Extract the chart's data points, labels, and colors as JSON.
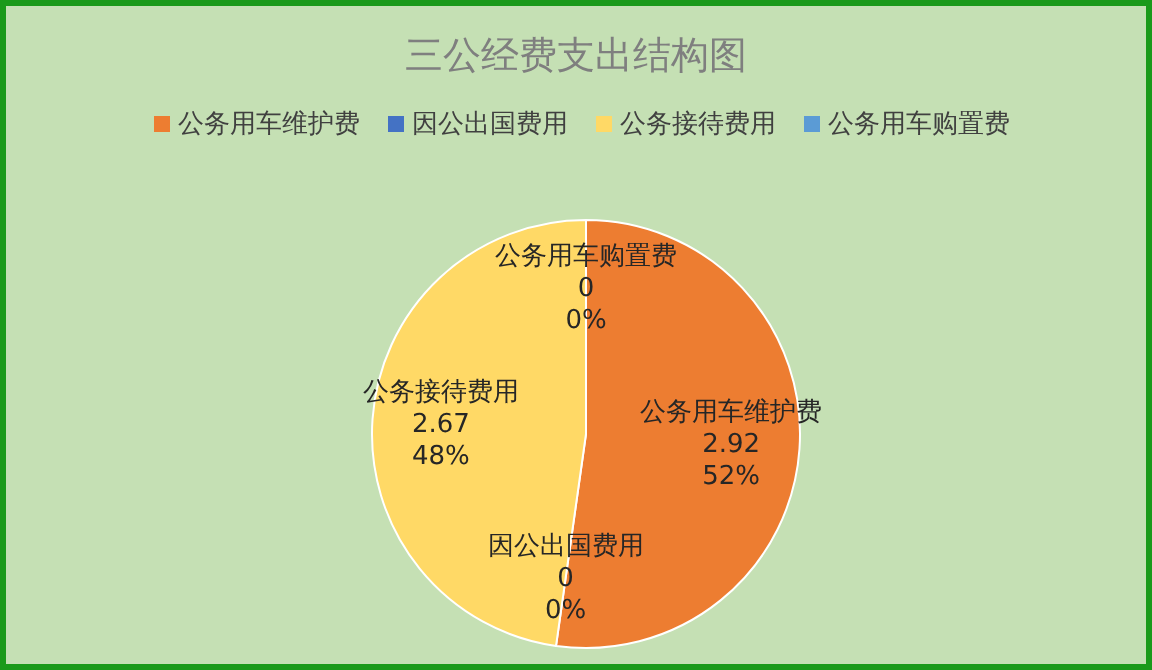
{
  "chart_data": {
    "type": "pie",
    "title": "三公经费支出结构图",
    "categories": [
      "公务用车维护费",
      "因公出国费用",
      "公务接待费用",
      "公务用车购置费"
    ],
    "values": [
      2.92,
      0,
      2.67,
      0
    ],
    "colors": [
      "#ed7d31",
      "#4472c4",
      "#ffd966",
      "#5b9bd5"
    ],
    "annotations": [
      {
        "text": "52%",
        "x": "公务用车维护费"
      },
      {
        "text": "0%",
        "x": "因公出国费用"
      },
      {
        "text": "48%",
        "x": "公务接待费用"
      },
      {
        "text": "0%",
        "x": "公务用车购置费"
      }
    ],
    "value_labels": [
      "2.92",
      "0",
      "2.67",
      "0"
    ],
    "legend": "top"
  }
}
